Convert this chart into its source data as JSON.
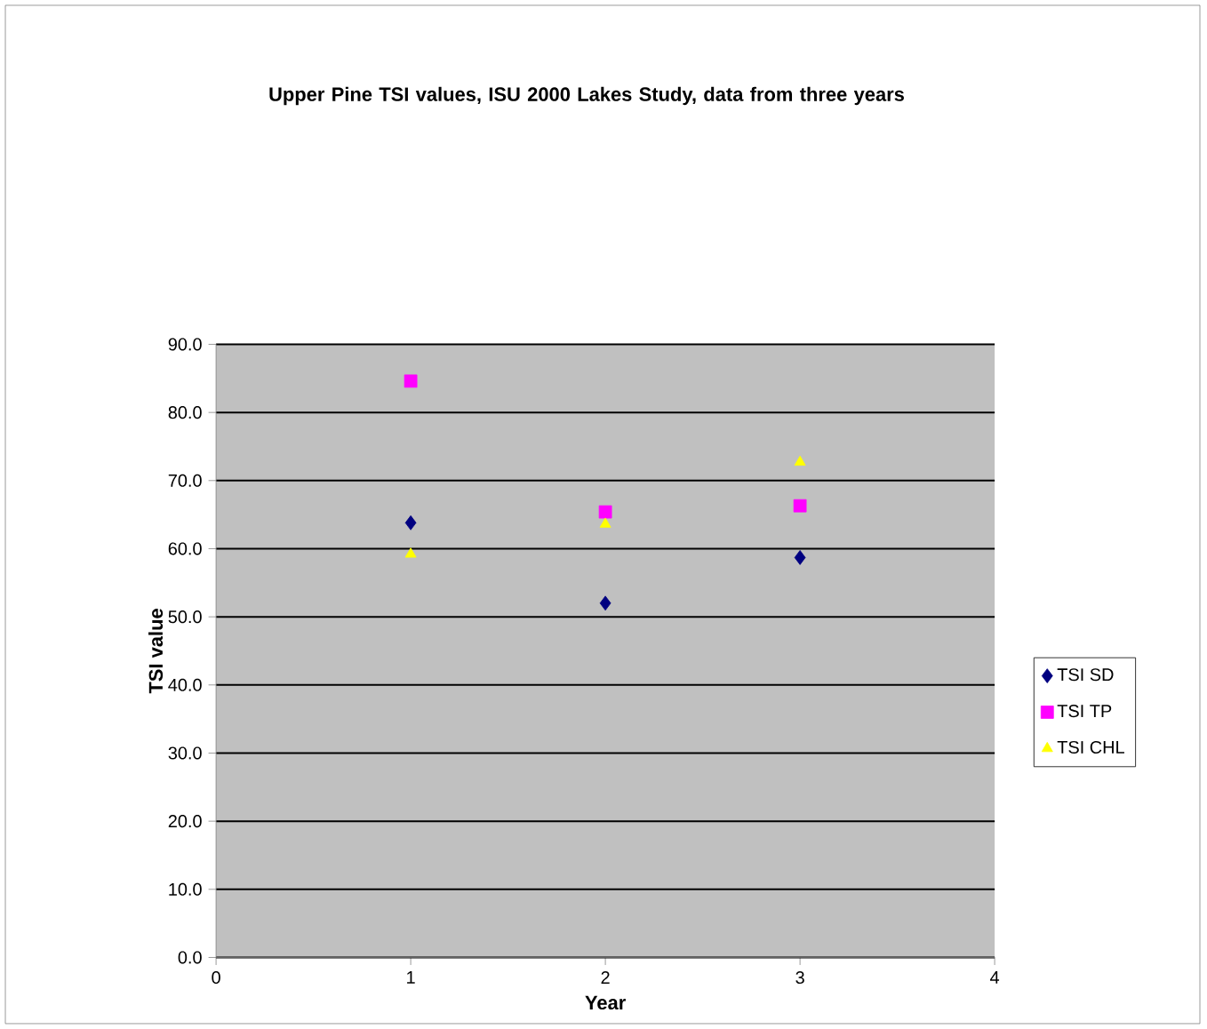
{
  "chart_data": {
    "type": "scatter",
    "title": "Upper Pine TSI values, ISU 2000 Lakes Study, data from three years",
    "xlabel": "Year",
    "ylabel": "TSI value",
    "x": [
      1,
      2,
      3
    ],
    "series": [
      {
        "name": "TSI SD",
        "color": "#000080",
        "marker": "diamond",
        "values": [
          63.8,
          52.0,
          58.7
        ]
      },
      {
        "name": "TSI TP",
        "color": "#ff00ff",
        "marker": "square",
        "values": [
          84.6,
          65.4,
          66.3
        ]
      },
      {
        "name": "TSI CHL",
        "color": "#ffff00",
        "marker": "triangle",
        "values": [
          59.2,
          63.6,
          72.7
        ]
      }
    ],
    "xlim": [
      0,
      4
    ],
    "xticks": [
      0,
      1,
      2,
      3,
      4
    ],
    "ylim": [
      0,
      90
    ],
    "yticks": [
      {
        "value": 0,
        "label": "0.0"
      },
      {
        "value": 10,
        "label": "10.0"
      },
      {
        "value": 20,
        "label": "20.0"
      },
      {
        "value": 30,
        "label": "30.0"
      },
      {
        "value": 40,
        "label": "40.0"
      },
      {
        "value": 50,
        "label": "50.0"
      },
      {
        "value": 60,
        "label": "60.0"
      },
      {
        "value": 70,
        "label": "70.0"
      },
      {
        "value": 80,
        "label": "80.0"
      },
      {
        "value": 90,
        "label": "90.0"
      }
    ],
    "grid": "y",
    "legend": "right"
  }
}
